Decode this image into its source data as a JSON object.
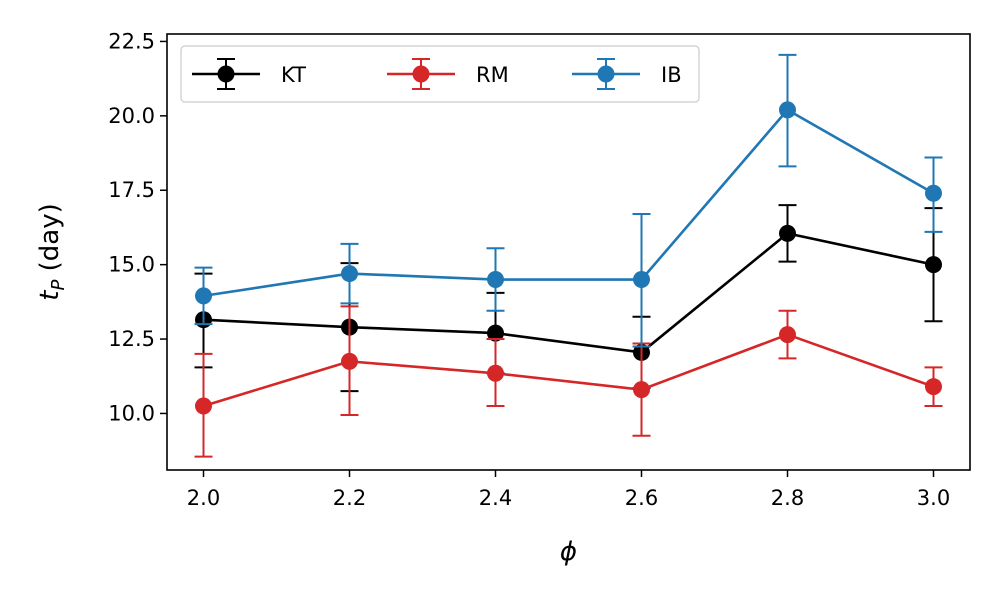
{
  "chart_data": {
    "type": "line",
    "title": "",
    "xlabel": "ϕ",
    "ylabel_main": "t",
    "ylabel_sub": "P",
    "ylabel_rest": " (day)",
    "xlim": [
      1.95,
      3.05
    ],
    "ylim": [
      8.1,
      22.75
    ],
    "x_ticks": [
      2.0,
      2.2,
      2.4,
      2.6,
      2.8,
      3.0
    ],
    "x_tick_labels": [
      "2.0",
      "2.2",
      "2.4",
      "2.6",
      "2.8",
      "3.0"
    ],
    "y_ticks": [
      10.0,
      12.5,
      15.0,
      17.5,
      20.0,
      22.5
    ],
    "y_tick_labels": [
      "10.0",
      "12.5",
      "15.0",
      "17.5",
      "20.0",
      "22.5"
    ],
    "grid": false,
    "legend_position": "top-left",
    "x": [
      2.0,
      2.2,
      2.4,
      2.6,
      2.8,
      3.0
    ],
    "series": [
      {
        "name": "KT",
        "color": "#000000",
        "values": [
          13.15,
          12.9,
          12.7,
          12.05,
          16.05,
          15.0
        ],
        "err_low": [
          11.55,
          10.75,
          11.35,
          10.85,
          15.1,
          13.1
        ],
        "err_high": [
          14.7,
          15.05,
          14.05,
          13.25,
          17.0,
          16.9
        ]
      },
      {
        "name": "RM",
        "color": "#d62728",
        "values": [
          10.25,
          11.75,
          11.35,
          10.8,
          12.65,
          10.9
        ],
        "err_low": [
          8.55,
          9.95,
          10.25,
          9.25,
          11.85,
          10.25
        ],
        "err_high": [
          12.0,
          13.6,
          12.5,
          12.35,
          13.45,
          11.55
        ]
      },
      {
        "name": "IB",
        "color": "#1f77b4",
        "values": [
          13.95,
          14.7,
          14.5,
          14.5,
          20.2,
          17.4
        ],
        "err_low": [
          13.0,
          13.7,
          13.45,
          12.25,
          18.3,
          16.1
        ],
        "err_high": [
          14.9,
          15.7,
          15.55,
          16.7,
          22.05,
          18.6
        ]
      }
    ]
  }
}
